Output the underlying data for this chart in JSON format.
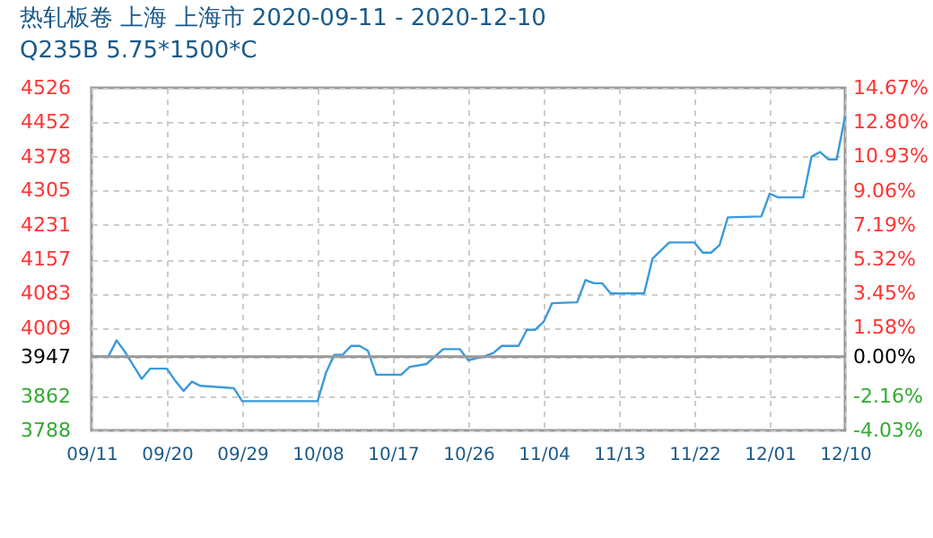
{
  "chart_data": {
    "type": "line",
    "title": "热轧板卷 上海 上海市 2020-09-11 - 2020-12-10",
    "subtitle": "Q235B 5.75*1500*C",
    "x": [
      "2020-09-11",
      "2020-09-13",
      "2020-09-14",
      "2020-09-15",
      "2020-09-17",
      "2020-09-18",
      "2020-09-20",
      "2020-09-21",
      "2020-09-22",
      "2020-09-23",
      "2020-09-24",
      "2020-09-28",
      "2020-09-29",
      "2020-10-08",
      "2020-10-09",
      "2020-10-10",
      "2020-10-11",
      "2020-10-12",
      "2020-10-13",
      "2020-10-14",
      "2020-10-15",
      "2020-10-18",
      "2020-10-19",
      "2020-10-21",
      "2020-10-23",
      "2020-10-25",
      "2020-10-26",
      "2020-10-28",
      "2020-10-29",
      "2020-10-30",
      "2020-11-01",
      "2020-11-02",
      "2020-11-03",
      "2020-11-04",
      "2020-11-05",
      "2020-11-08",
      "2020-11-09",
      "2020-11-10",
      "2020-11-11",
      "2020-11-12",
      "2020-11-16",
      "2020-11-17",
      "2020-11-19",
      "2020-11-22",
      "2020-11-23",
      "2020-11-24",
      "2020-11-25",
      "2020-11-26",
      "2020-11-30",
      "2020-12-01",
      "2020-12-02",
      "2020-12-05",
      "2020-12-06",
      "2020-12-07",
      "2020-12-08",
      "2020-12-09",
      "2020-12-10"
    ],
    "series": [
      {
        "color": "#3a9ad9",
        "values": [
          3947,
          3947,
          3982,
          3957,
          3899,
          3921,
          3921,
          3895,
          3873,
          3893,
          3884,
          3879,
          3851,
          3851,
          3912,
          3951,
          3951,
          3970,
          3970,
          3960,
          3908,
          3908,
          3925,
          3931,
          3963,
          3963,
          3939,
          3948,
          3955,
          3970,
          3970,
          4005,
          4005,
          4022,
          4062,
          4064,
          4112,
          4105,
          4105,
          4083,
          4083,
          4158,
          4193,
          4193,
          4171,
          4171,
          4187,
          4247,
          4249,
          4298,
          4290,
          4290,
          4378,
          4388,
          4372,
          4372,
          4465
        ]
      }
    ],
    "xlim": [
      "2020-09-11",
      "2020-12-10"
    ],
    "xticks": [
      {
        "value": "2020-09-11",
        "label": "09/11"
      },
      {
        "value": "2020-09-20",
        "label": "09/20"
      },
      {
        "value": "2020-09-29",
        "label": "09/29"
      },
      {
        "value": "2020-10-08",
        "label": "10/08"
      },
      {
        "value": "2020-10-17",
        "label": "10/17"
      },
      {
        "value": "2020-10-26",
        "label": "10/26"
      },
      {
        "value": "2020-11-04",
        "label": "11/04"
      },
      {
        "value": "2020-11-13",
        "label": "11/13"
      },
      {
        "value": "2020-11-22",
        "label": "11/22"
      },
      {
        "value": "2020-12-01",
        "label": "12/01"
      },
      {
        "value": "2020-12-10",
        "label": "12/10"
      }
    ],
    "ylim": [
      3788,
      4526
    ],
    "yticks": [
      3788,
      3862,
      3947,
      4009,
      4083,
      4157,
      4231,
      4305,
      4378,
      4452,
      4526
    ],
    "y2lim": [
      -4.03,
      14.67
    ],
    "y2ticks": [
      {
        "value": -4.03,
        "label": "-4.03%"
      },
      {
        "value": -2.16,
        "label": "-2.16%"
      },
      {
        "value": 0,
        "label": "0.00%"
      },
      {
        "value": 1.58,
        "label": "1.58%"
      },
      {
        "value": 3.45,
        "label": "3.45%"
      },
      {
        "value": 5.32,
        "label": "5.32%"
      },
      {
        "value": 7.19,
        "label": "7.19%"
      },
      {
        "value": 9.06,
        "label": "9.06%"
      },
      {
        "value": 10.93,
        "label": "10.93%"
      },
      {
        "value": 12.8,
        "label": "12.80%"
      },
      {
        "value": 14.67,
        "label": "14.67%"
      }
    ],
    "ref_lines": [
      {
        "axis": "y",
        "value": 3947,
        "color": "#999999"
      }
    ],
    "grid": true,
    "marker": "none",
    "line_style": "solid"
  }
}
